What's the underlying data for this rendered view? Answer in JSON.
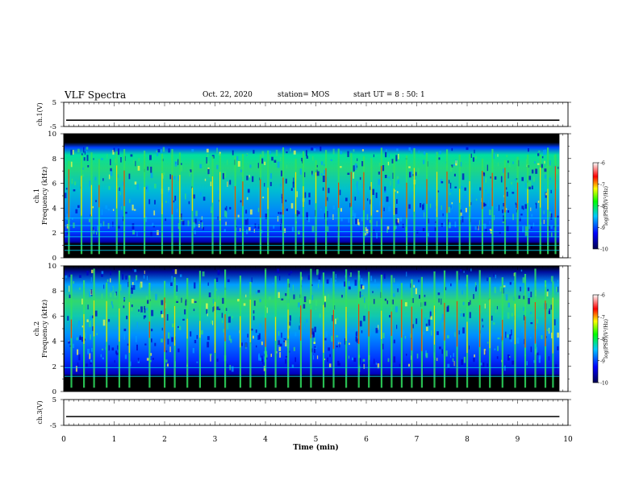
{
  "header": {
    "title": "VLF Spectra",
    "date": "Oct. 22, 2020",
    "station": "station= MOS",
    "start_ut": "start  UT =  8 : 50: 1"
  },
  "chart_data": {
    "type": "heatmap",
    "x": {
      "label": "Time (min)",
      "range": [
        0,
        10
      ],
      "ticks": [
        0,
        1,
        2,
        3,
        4,
        5,
        6,
        7,
        8,
        9,
        10
      ],
      "data_extent": [
        0,
        9.83
      ]
    },
    "panels": [
      {
        "name": "ch.1(V)",
        "type": "line",
        "ylabel": "ch.1(V)",
        "ylim": [
          -5,
          5
        ],
        "yticks": [
          "5",
          "-5"
        ],
        "value": -2.4
      },
      {
        "name": "ch.1 Frequency (kHz)",
        "type": "heatmap",
        "ylabel": "Frequency (kHz)",
        "ylabel_top": "ch.1",
        "ylim": [
          0,
          10
        ],
        "yticks": [
          "10",
          "8",
          "6",
          "4",
          "2",
          "0"
        ],
        "colorbar": {
          "label": "log(PSD)(V²/Hz)",
          "range": [
            -10,
            -6
          ],
          "ticks": [
            "-6",
            "-7",
            "-8",
            "-9",
            "-10"
          ]
        },
        "intensity_band_khz": [
          2.0,
          9.0
        ],
        "horizontal_lines_khz": [
          0.6,
          1.0,
          1.7,
          2.1,
          2.6,
          3.2
        ],
        "vertical_bursts_min": [
          0.1,
          0.35,
          0.55,
          0.7,
          1.05,
          1.2,
          1.6,
          1.95,
          2.15,
          2.3,
          2.55,
          2.95,
          3.1,
          3.4,
          3.55,
          3.9,
          4.05,
          4.35,
          4.6,
          4.75,
          5.0,
          5.2,
          5.45,
          5.7,
          5.95,
          6.1,
          6.3,
          6.55,
          6.8,
          6.95,
          7.2,
          7.4,
          7.6,
          7.85,
          8.05,
          8.3,
          8.5,
          8.75,
          9.0,
          9.2,
          9.45,
          9.6,
          9.75
        ]
      },
      {
        "name": "ch.2 Frequency (kHz)",
        "type": "heatmap",
        "ylabel": "Frequency (kHz)",
        "ylabel_top": "ch.2",
        "ylim": [
          0,
          10
        ],
        "yticks": [
          "10",
          "8",
          "6",
          "4",
          "2",
          "0"
        ],
        "colorbar": {
          "label": "log(PSD)(V²/Hz)",
          "range": [
            -10,
            -6
          ],
          "ticks": [
            "-6",
            "-7",
            "-8",
            "-9",
            "-10"
          ]
        },
        "intensity_band_khz": [
          2.0,
          9.8
        ],
        "horizontal_lines_khz": [
          1.2,
          1.9
        ],
        "vertical_bursts_min": [
          0.15,
          0.4,
          0.6,
          0.85,
          1.1,
          1.3,
          1.7,
          2.0,
          2.2,
          2.45,
          2.7,
          3.0,
          3.2,
          3.5,
          3.7,
          4.0,
          4.2,
          4.45,
          4.7,
          4.9,
          5.15,
          5.35,
          5.6,
          5.85,
          6.05,
          6.3,
          6.5,
          6.7,
          6.9,
          7.1,
          7.35,
          7.55,
          7.8,
          8.0,
          8.25,
          8.45,
          8.7,
          8.95,
          9.15,
          9.35,
          9.55,
          9.7
        ]
      },
      {
        "name": "ch.3(V)",
        "type": "line",
        "ylabel": "ch.3(V)",
        "ylim": [
          -5,
          5
        ],
        "yticks": [
          "5",
          "-5"
        ],
        "value": -1.6
      }
    ]
  },
  "colors": {
    "background": "#000000",
    "colormap": [
      "#00003c",
      "#0000ff",
      "#00ffff",
      "#00ff00",
      "#ffff00",
      "#ff0000",
      "#ffffff"
    ]
  }
}
